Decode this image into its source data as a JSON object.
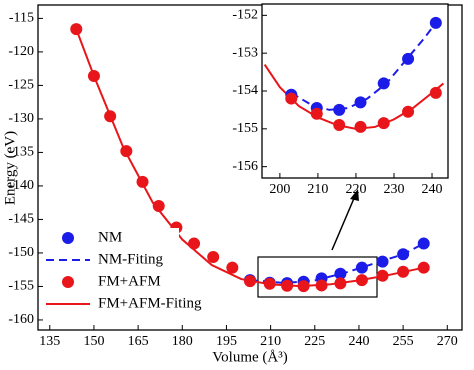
{
  "chart_data": [
    {
      "type": "line",
      "xlabel": "Volume (Å³)",
      "ylabel": "Energy (eV)",
      "xlim": [
        131,
        275
      ],
      "ylim": [
        -161.5,
        -113
      ],
      "xticks": [
        135,
        150,
        165,
        180,
        195,
        210,
        225,
        240,
        255,
        270
      ],
      "yticks": [
        -115,
        -120,
        -125,
        -130,
        -135,
        -140,
        -145,
        -150,
        -155,
        -160
      ],
      "legend": "lower left",
      "series": [
        {
          "name": "NM",
          "color": "#1c1ce8",
          "style": "marker",
          "x": [
            203,
            209.7,
            215.6,
            221.2,
            227.3,
            233.7,
            241,
            248,
            255,
            262
          ],
          "values": [
            -154.05,
            -154.45,
            -154.5,
            -154.3,
            -153.8,
            -153.1,
            -152.2,
            -151.3,
            -150.2,
            -148.6
          ]
        },
        {
          "name": "NM-Fiting",
          "color": "#1c1ce8",
          "style": "dashed",
          "x": [
            203,
            215,
            225,
            235,
            245,
            255,
            262
          ],
          "values": [
            -154.05,
            -154.5,
            -154.1,
            -153,
            -151.6,
            -150.2,
            -148.6
          ]
        },
        {
          "name": "FM+AFM",
          "color": "#e8161a",
          "style": "marker",
          "x": [
            144,
            150,
            155.5,
            161,
            166.5,
            172,
            178,
            184,
            190.5,
            197,
            203,
            209.7,
            215.6,
            221.2,
            227.3,
            233.7,
            241,
            248,
            255,
            262
          ],
          "values": [
            -116.6,
            -123.6,
            -129.6,
            -134.8,
            -139.4,
            -143,
            -146.2,
            -148.6,
            -150.6,
            -152.2,
            -154.2,
            -154.6,
            -154.9,
            -154.95,
            -154.85,
            -154.55,
            -154.05,
            -153.4,
            -152.8,
            -152.2
          ]
        },
        {
          "name": "FM+AFM-Fiting",
          "color": "#e8161a",
          "style": "solid",
          "x": [
            144,
            150,
            160,
            170,
            180,
            190,
            200,
            210,
            220,
            230,
            240,
            250,
            262
          ],
          "values": [
            -116.6,
            -123.6,
            -134.3,
            -142.5,
            -148,
            -151.8,
            -153.9,
            -154.7,
            -154.95,
            -154.7,
            -154.1,
            -153.3,
            -152.2
          ]
        }
      ]
    },
    {
      "type": "line",
      "xlim": [
        195.3,
        244.2
      ],
      "ylim": [
        -156.3,
        -151.7
      ],
      "xticks": [
        200,
        210,
        220,
        230,
        240
      ],
      "yticks": [
        -152,
        -153,
        -154,
        -155,
        -156
      ],
      "series": [
        {
          "color": "#1c1ce8",
          "style": "marker",
          "x": [
            203,
            209.7,
            215.6,
            221.2,
            227.3,
            233.7,
            241
          ],
          "values": [
            -154.1,
            -154.45,
            -154.5,
            -154.3,
            -153.8,
            -153.15,
            -152.2
          ]
        },
        {
          "color": "#1c1ce8",
          "style": "dashed",
          "x": [
            203,
            208,
            213,
            218,
            223,
            228,
            233,
            238,
            241
          ],
          "values": [
            -154.05,
            -154.35,
            -154.5,
            -154.45,
            -154.2,
            -153.8,
            -153.2,
            -152.6,
            -152.2
          ]
        },
        {
          "color": "#e8161a",
          "style": "marker",
          "x": [
            203,
            209.7,
            215.6,
            221.2,
            227.3,
            233.7,
            241
          ],
          "values": [
            -154.2,
            -154.6,
            -154.9,
            -154.95,
            -154.85,
            -154.55,
            -154.05
          ]
        },
        {
          "color": "#e8161a",
          "style": "solid",
          "x": [
            196,
            200,
            205,
            210,
            215,
            220,
            225,
            230,
            235,
            240,
            243
          ],
          "values": [
            -153.3,
            -153.9,
            -154.4,
            -154.7,
            -154.9,
            -155,
            -154.95,
            -154.75,
            -154.45,
            -154.05,
            -153.8
          ]
        }
      ]
    }
  ]
}
